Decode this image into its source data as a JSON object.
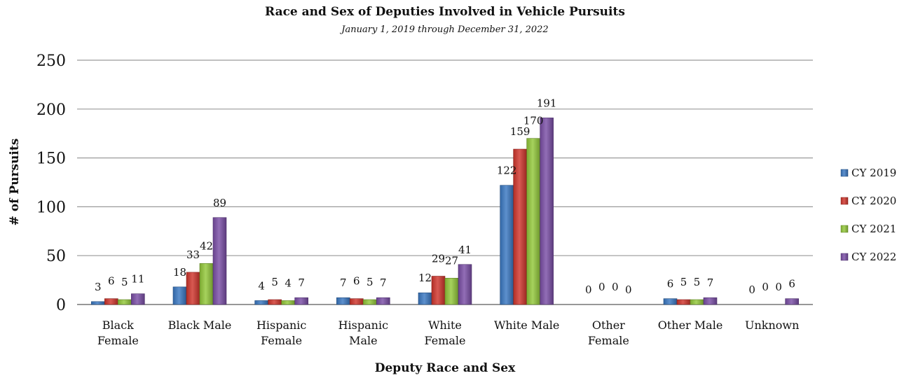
{
  "chart_data": {
    "type": "bar",
    "title": "Race and Sex of Deputies Involved in Vehicle Pursuits",
    "subtitle": "January 1, 2019 through December 31, 2022",
    "xlabel": "Deputy Race and Sex",
    "ylabel": "# of Pursuits",
    "ylim": [
      0,
      250
    ],
    "yticks": [
      0,
      50,
      100,
      150,
      200,
      250
    ],
    "grid": true,
    "legend_position": "right",
    "categories": [
      [
        "Black",
        "Female"
      ],
      [
        "Black Male"
      ],
      [
        "Hispanic",
        "Female"
      ],
      [
        "Hispanic",
        "Male"
      ],
      [
        "White",
        "Female"
      ],
      [
        "White Male"
      ],
      [
        "Other",
        "Female"
      ],
      [
        "Other Male"
      ],
      [
        "Unknown"
      ]
    ],
    "series": [
      {
        "name": "CY 2019",
        "color": "#3a78c2",
        "values": [
          3,
          18,
          4,
          7,
          12,
          122,
          0,
          6,
          0
        ]
      },
      {
        "name": "CY 2020",
        "color": "#d0352c",
        "values": [
          6,
          33,
          5,
          6,
          29,
          159,
          0,
          5,
          0
        ]
      },
      {
        "name": "CY 2021",
        "color": "#93c83a",
        "values": [
          5,
          42,
          4,
          5,
          27,
          170,
          0,
          5,
          0
        ]
      },
      {
        "name": "CY 2022",
        "color": "#7a4ea6",
        "values": [
          11,
          89,
          7,
          7,
          41,
          191,
          0,
          7,
          6
        ]
      }
    ]
  }
}
